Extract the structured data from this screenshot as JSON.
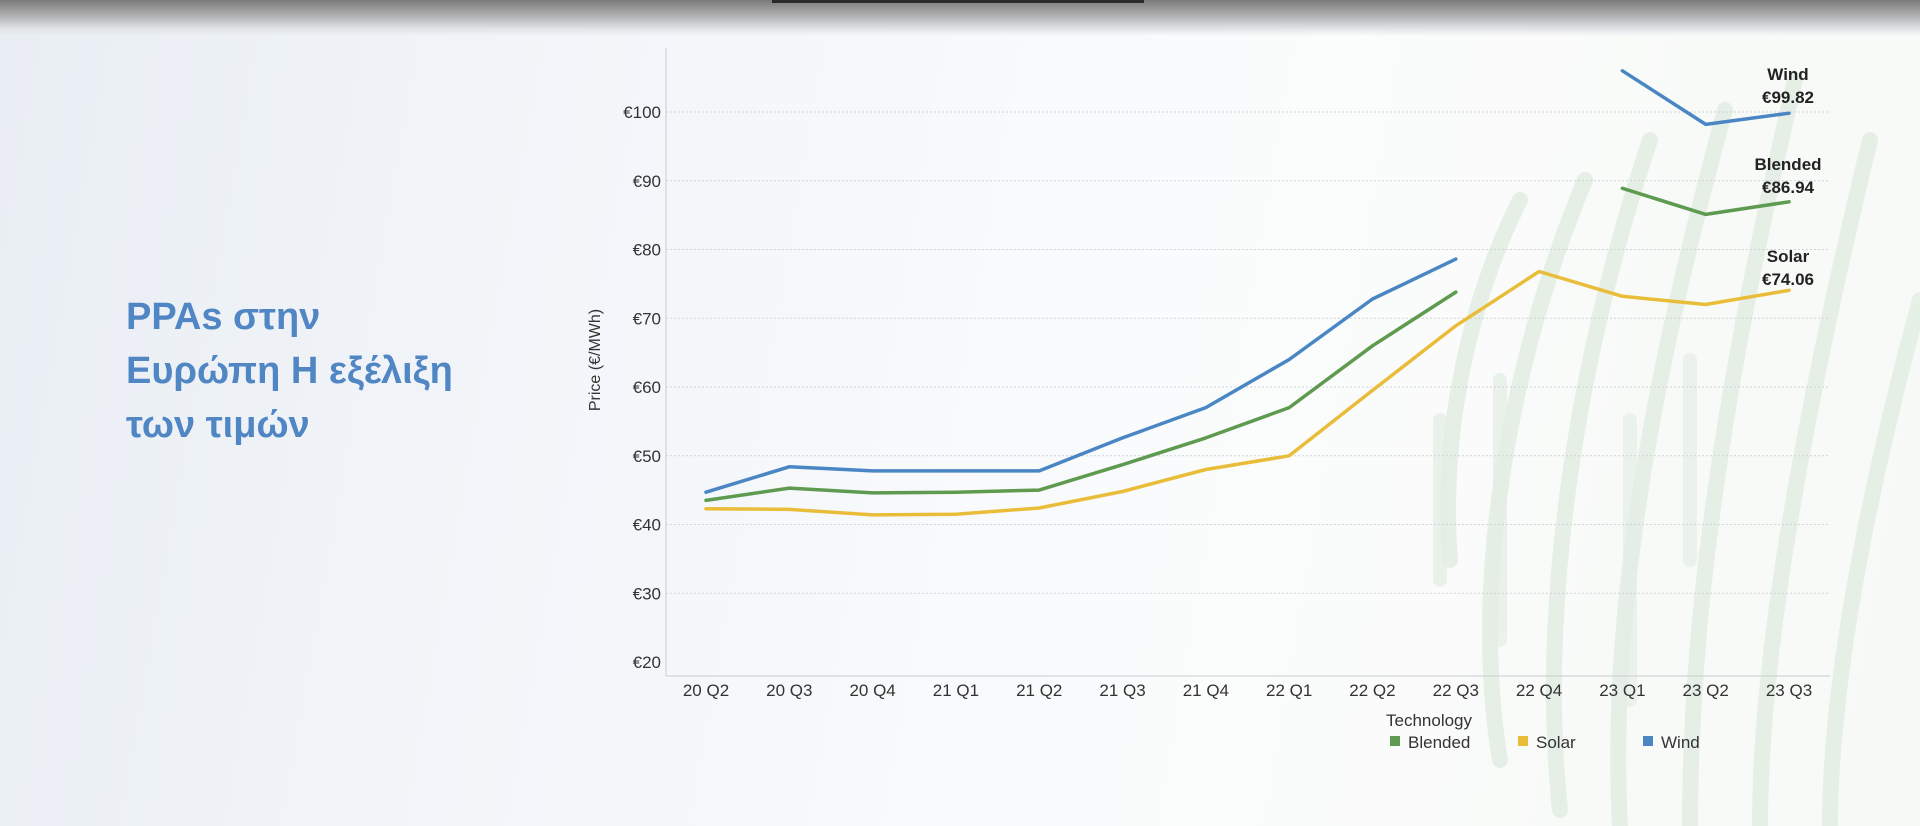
{
  "slide": {
    "title_lines": [
      "PPAs στην",
      "Ευρώπη Η εξέλιξη",
      "των τιμών"
    ]
  },
  "colors": {
    "title": "#4f86c3",
    "Blended": "#5e9a4f",
    "Solar": "#e9bd3a",
    "Wind": "#4a86c4"
  },
  "chart_data": {
    "type": "line",
    "title": "",
    "xlabel": "",
    "ylabel": "Price (€/MWh)",
    "ylim": [
      20,
      100
    ],
    "yticks": [
      20,
      30,
      40,
      50,
      60,
      70,
      80,
      90,
      100
    ],
    "ytick_labels": [
      "€20",
      "€30",
      "€40",
      "€50",
      "€60",
      "€70",
      "€80",
      "€90",
      "€100"
    ],
    "grid": true,
    "categories": [
      "20 Q2",
      "20 Q3",
      "20 Q4",
      "21 Q1",
      "21 Q2",
      "21 Q3",
      "21 Q4",
      "22 Q1",
      "22 Q2",
      "22 Q3",
      "22 Q4",
      "23 Q1",
      "23 Q2",
      "23 Q3"
    ],
    "series": [
      {
        "name": "Blended",
        "values": [
          43.5,
          45.3,
          44.6,
          44.7,
          45.0,
          48.7,
          52.6,
          57.0,
          66.0,
          73.8,
          null,
          88.9,
          85.1,
          86.94
        ]
      },
      {
        "name": "Solar",
        "values": [
          42.3,
          42.2,
          41.4,
          41.5,
          42.4,
          44.8,
          48.0,
          50.0,
          59.5,
          68.9,
          76.8,
          73.2,
          72.0,
          74.06
        ]
      },
      {
        "name": "Wind",
        "values": [
          44.7,
          48.4,
          47.8,
          47.8,
          47.8,
          52.6,
          57.0,
          64.0,
          72.8,
          78.6,
          null,
          106.0,
          98.2,
          99.82
        ]
      }
    ],
    "annotations": [
      {
        "series": "Wind",
        "label": "Wind",
        "value_label": "€99.82"
      },
      {
        "series": "Blended",
        "label": "Blended",
        "value_label": "€86.94"
      },
      {
        "series": "Solar",
        "label": "Solar",
        "value_label": "€74.06"
      }
    ],
    "legend": {
      "title": "Technology",
      "position": "bottom-right",
      "items": [
        "Blended",
        "Solar",
        "Wind"
      ]
    }
  }
}
